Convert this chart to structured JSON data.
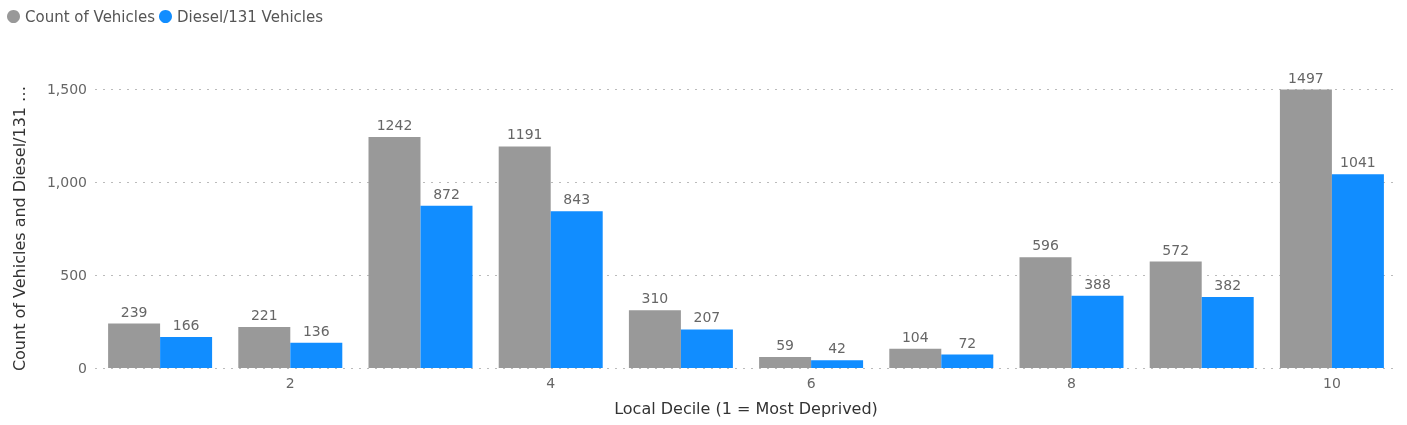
{
  "chart_data": {
    "type": "bar",
    "xlabel": "Local Decile (1 = Most Deprived)",
    "ylabel": "Count of Vehicles and Diesel/131 …",
    "x": [
      1,
      2,
      3,
      4,
      5,
      6,
      7,
      8,
      9,
      10
    ],
    "xlim": [
      0.5,
      10.5
    ],
    "xticks": [
      2,
      4,
      6,
      8,
      10
    ],
    "ylim": [
      0,
      1500
    ],
    "yticks": [
      0,
      500,
      {
        "value": 1000,
        "label": "1,000"
      },
      {
        "value": 1500,
        "label": "1,500"
      }
    ],
    "series": [
      {
        "name": "Count of Vehicles",
        "color": "#999999",
        "values": [
          239,
          221,
          1242,
          1191,
          310,
          59,
          104,
          596,
          572,
          1497
        ]
      },
      {
        "name": "Diesel/131 Vehicles",
        "color": "#118dff",
        "values": [
          166,
          136,
          872,
          843,
          207,
          42,
          72,
          388,
          382,
          1041
        ]
      }
    ],
    "data_labels": true,
    "grid": "y",
    "legend": "top left"
  }
}
